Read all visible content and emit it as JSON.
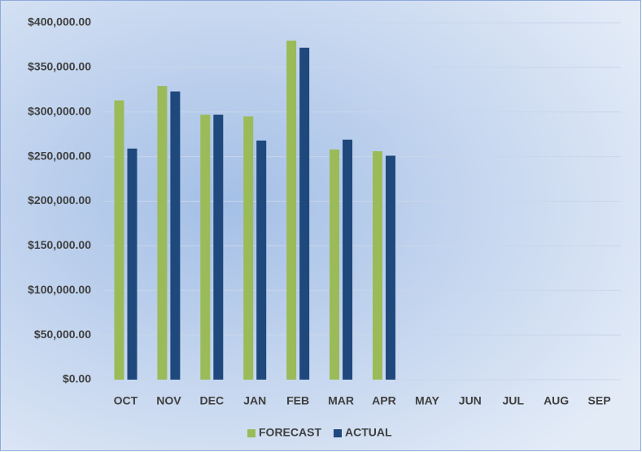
{
  "chart_data": {
    "type": "bar",
    "categories": [
      "OCT",
      "NOV",
      "DEC",
      "JAN",
      "FEB",
      "MAR",
      "APR",
      "MAY",
      "JUN",
      "JUL",
      "AUG",
      "SEP"
    ],
    "series": [
      {
        "name": "FORECAST",
        "color": "#9bbb59",
        "values": [
          313000,
          329000,
          297000,
          295000,
          380000,
          258000,
          256000,
          null,
          null,
          null,
          null,
          null
        ]
      },
      {
        "name": "ACTUAL",
        "color": "#1f497d",
        "values": [
          259000,
          323000,
          297000,
          268000,
          372000,
          269000,
          251000,
          null,
          null,
          null,
          null,
          null
        ]
      }
    ],
    "ylim": [
      0,
      400000
    ],
    "yticks": [
      {
        "value": 0,
        "label": "$0.00"
      },
      {
        "value": 50000,
        "label": "$50,000.00"
      },
      {
        "value": 100000,
        "label": "$100,000.00"
      },
      {
        "value": 150000,
        "label": "$150,000.00"
      },
      {
        "value": 200000,
        "label": "$200,000.00"
      },
      {
        "value": 250000,
        "label": "$250,000.00"
      },
      {
        "value": 300000,
        "label": "$300,000.00"
      },
      {
        "value": 350000,
        "label": "$350,000.00"
      },
      {
        "value": 400000,
        "label": "$400,000.00"
      }
    ],
    "grid": true,
    "legend": "bottom"
  }
}
